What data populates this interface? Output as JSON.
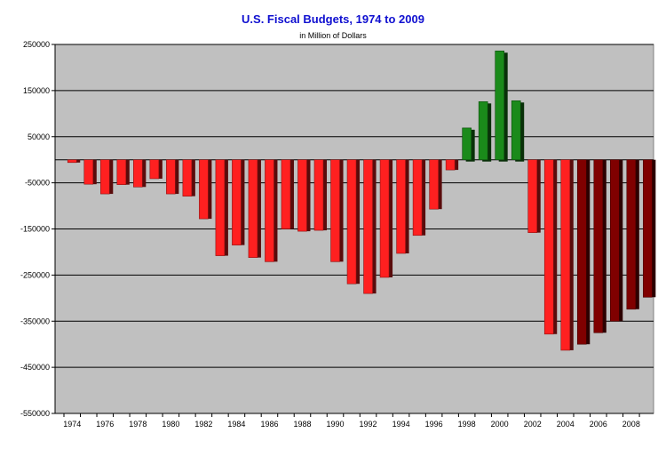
{
  "chart_data": {
    "type": "bar",
    "title": "U.S. Fiscal Budgets, 1974 to 2009",
    "subtitle": "in Million of Dollars",
    "xlabel": "",
    "ylabel": "",
    "ylim": [
      -550000,
      250000
    ],
    "y_ticks": [
      "250000",
      "150000",
      "50000",
      "-50000",
      "-150000",
      "-250000",
      "-350000",
      "-450000",
      "-550000"
    ],
    "x_tick_labels": [
      "1974",
      "1976",
      "1978",
      "1980",
      "1982",
      "1984",
      "1986",
      "1988",
      "1990",
      "1992",
      "1994",
      "1996",
      "1998",
      "2000",
      "2002",
      "2004",
      "2006",
      "2008"
    ],
    "grid": true,
    "legend": "none",
    "colors": {
      "deficit": "#ff2020",
      "surplus": "#1a8a1a",
      "deficit_late": "#800000",
      "plot_background": "#c0c0c0"
    },
    "categories": [
      "1974",
      "1975",
      "1976",
      "1977",
      "1978",
      "1979",
      "1980",
      "1981",
      "1982",
      "1983",
      "1984",
      "1985",
      "1986",
      "1987",
      "1988",
      "1989",
      "1990",
      "1991",
      "1992",
      "1993",
      "1994",
      "1995",
      "1996",
      "1997",
      "1998",
      "1999",
      "2000",
      "2001",
      "2002",
      "2003",
      "2004",
      "2005",
      "2006",
      "2007",
      "2008",
      "2009"
    ],
    "values": [
      -6000,
      -53000,
      -74000,
      -54000,
      -59000,
      -41000,
      -74000,
      -79000,
      -128000,
      -208000,
      -185000,
      -212000,
      -221000,
      -150000,
      -155000,
      -153000,
      -221000,
      -269000,
      -290000,
      -255000,
      -203000,
      -164000,
      -107000,
      -22000,
      69000,
      126000,
      236000,
      128000,
      -158000,
      -378000,
      -413000,
      -400000,
      -375000,
      -350000,
      -324000,
      -298000
    ],
    "bar_color_keys": [
      "deficit",
      "deficit",
      "deficit",
      "deficit",
      "deficit",
      "deficit",
      "deficit",
      "deficit",
      "deficit",
      "deficit",
      "deficit",
      "deficit",
      "deficit",
      "deficit",
      "deficit",
      "deficit",
      "deficit",
      "deficit",
      "deficit",
      "deficit",
      "deficit",
      "deficit",
      "deficit",
      "deficit",
      "surplus",
      "surplus",
      "surplus",
      "surplus",
      "deficit",
      "deficit",
      "deficit",
      "deficit_late",
      "deficit_late",
      "deficit_late",
      "deficit_late",
      "deficit_late"
    ]
  }
}
